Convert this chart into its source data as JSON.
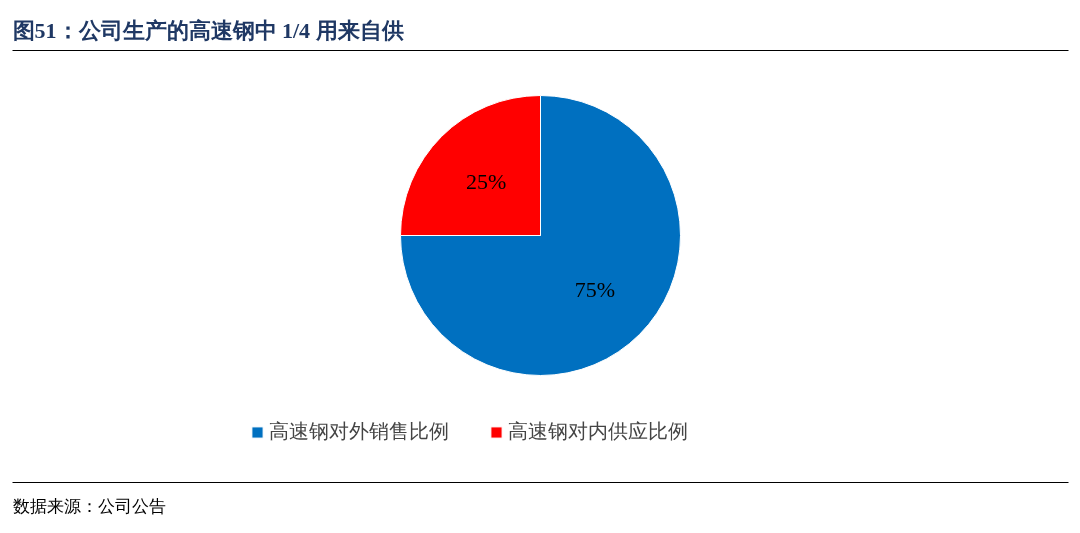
{
  "chart_data": {
    "type": "pie",
    "title": "图51：公司生产的高速钢中 1/4 用来自供",
    "categories": [
      "高速钢对外销售比例",
      "高速钢对内供应比例"
    ],
    "values": [
      75,
      25
    ],
    "colors": [
      "#0070c0",
      "#ff0000"
    ],
    "value_labels": [
      "75%",
      "25%"
    ],
    "legend": "bottom",
    "annotations": [
      "数据来源：公司公告"
    ]
  }
}
